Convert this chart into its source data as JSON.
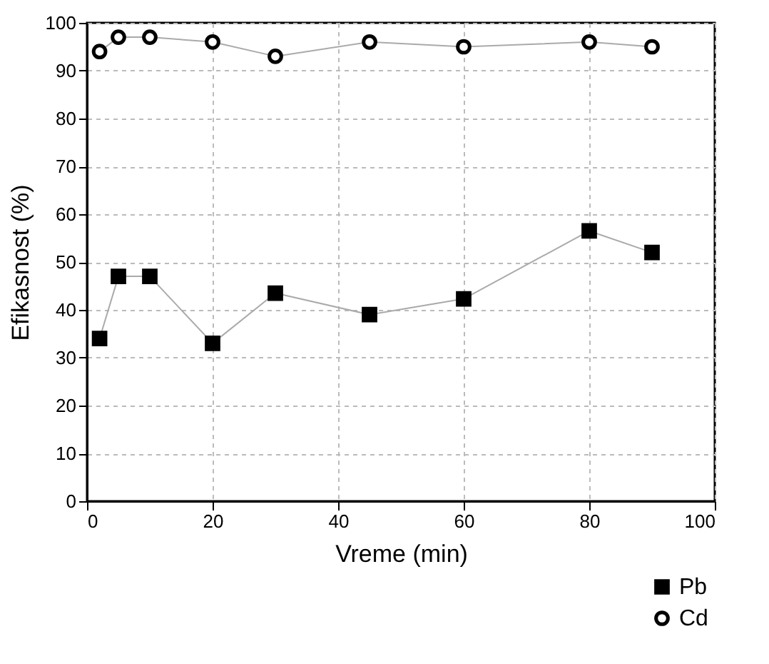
{
  "chart_data": {
    "type": "line",
    "xlabel": "Vreme (min)",
    "ylabel": "Efikasnost (%)",
    "x": [
      2,
      5,
      10,
      20,
      30,
      45,
      60,
      80,
      90
    ],
    "series": [
      {
        "name": "Pb",
        "color": "#000000",
        "marker": "square",
        "values": [
          34,
          47,
          47,
          33,
          43.5,
          39,
          42.3,
          56.5,
          52
        ]
      },
      {
        "name": "Cd",
        "color": "#000000",
        "marker": "circle",
        "values": [
          94,
          97,
          97,
          96,
          93,
          96,
          95,
          96,
          95
        ]
      }
    ],
    "xlim": [
      0,
      100
    ],
    "xticks": [
      0,
      20,
      40,
      60,
      80,
      100
    ],
    "ylim": [
      0,
      100
    ],
    "yticks": [
      0,
      10,
      20,
      30,
      40,
      50,
      60,
      70,
      80,
      90,
      100
    ],
    "grid": true,
    "legend": "bottom right",
    "line_style": "solid"
  }
}
